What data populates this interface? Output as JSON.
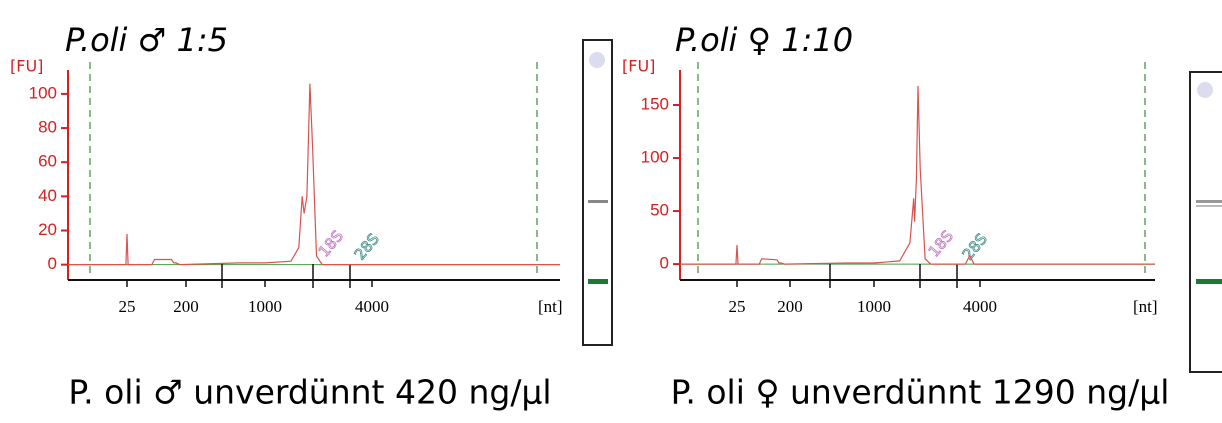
{
  "chart_data": [
    {
      "type": "line",
      "title": "P.oli ♂ 1:5",
      "ylabel": "[FU]",
      "xlabel": "[nt]",
      "annotations": [
        "18S",
        "28S"
      ],
      "caption": "P. oli ♂ unverdünnt 420 ng/µl",
      "color": "#d9534f",
      "x": [
        3,
        20,
        24,
        25,
        26,
        60,
        66,
        120,
        130,
        140,
        160,
        598,
        1000,
        1400,
        1550,
        1620,
        1660,
        1720,
        1790,
        1850,
        1950,
        2100,
        46000
      ],
      "values": [
        0,
        0,
        0,
        18,
        0,
        0,
        3,
        3,
        1,
        1,
        0,
        1,
        1,
        2,
        10,
        40,
        30,
        40,
        106,
        70,
        5,
        0,
        0
      ],
      "xlim": [
        3,
        46000
      ],
      "xticks": [
        25,
        200,
        1000,
        4000
      ],
      "ylim": [
        -9,
        114
      ],
      "yticks": [
        0,
        20,
        40,
        60,
        80,
        100
      ]
    },
    {
      "type": "line",
      "title": "P.oli ♀ 1:10",
      "ylabel": "[FU]",
      "xlabel": "[nt]",
      "annotations": [
        "18S",
        "28S"
      ],
      "caption": "P. oli ♀ unverdünnt 1290 ng/µl",
      "color": "#d9534f",
      "x": [
        3,
        20,
        24,
        25,
        26,
        60,
        66,
        120,
        130,
        140,
        160,
        598,
        1000,
        1400,
        1600,
        1680,
        1700,
        1740,
        1778,
        1830,
        1950,
        2100,
        3300,
        3500,
        3700,
        39000
      ],
      "values": [
        0,
        0,
        0,
        18,
        0,
        0,
        5,
        4,
        1,
        1,
        0,
        1,
        1,
        3,
        20,
        62,
        40,
        80,
        168,
        90,
        5,
        0,
        0,
        8,
        0,
        0
      ],
      "xlim": [
        3,
        39000
      ],
      "xticks": [
        25,
        200,
        1000,
        4000
      ],
      "ylim": [
        -15,
        183
      ],
      "yticks": [
        0,
        50,
        100,
        150
      ]
    }
  ]
}
